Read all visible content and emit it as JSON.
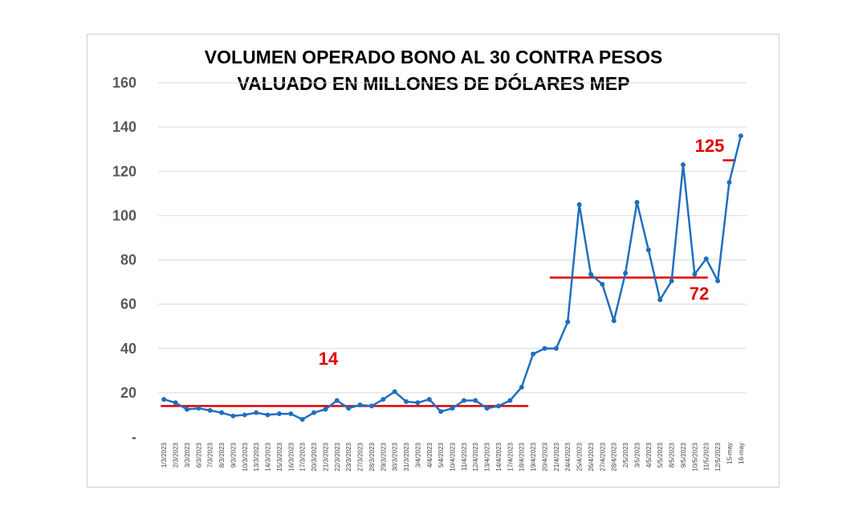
{
  "chart_data": {
    "type": "line",
    "title": "VOLUMEN OPERADO BONO AL 30 CONTRA PESOS",
    "subtitle": "VALUADO EN MILLONES DE DÓLARES MEP",
    "xlabel": "",
    "ylabel": "",
    "ylim": [
      0,
      160
    ],
    "yticks": [
      "-",
      "20",
      "40",
      "60",
      "80",
      "100",
      "120",
      "140",
      "160"
    ],
    "grid": true,
    "x": [
      "1/3/2023",
      "2/3/2023",
      "3/3/2023",
      "6/3/2023",
      "7/3/2023",
      "8/3/2023",
      "9/3/2023",
      "10/3/2023",
      "13/3/2023",
      "14/3/2023",
      "15/3/2023",
      "16/3/2023",
      "17/3/2023",
      "20/3/2023",
      "21/3/2023",
      "22/3/2023",
      "23/3/2023",
      "27/3/2023",
      "28/3/2023",
      "29/3/2023",
      "30/3/2023",
      "31/3/2023",
      "3/4/2023",
      "4/4/2023",
      "5/4/2023",
      "10/4/2023",
      "11/4/2023",
      "12/4/2023",
      "13/4/2023",
      "14/4/2023",
      "17/4/2023",
      "18/4/2023",
      "19/4/2023",
      "20/4/2023",
      "21/4/2023",
      "24/4/2023",
      "25/4/2023",
      "26/4/2023",
      "27/4/2023",
      "28/4/2023",
      "2/5/2023",
      "3/5/2023",
      "4/5/2023",
      "5/5/2023",
      "8/5/2023",
      "9/5/2023",
      "10/5/2023",
      "11/5/2023",
      "12/5/2023",
      "15-may",
      "16-may"
    ],
    "series": [
      {
        "color": "#1f6fbf",
        "values": [
          17,
          15.5,
          12.5,
          13,
          12,
          11,
          9.5,
          10,
          11,
          10,
          10.5,
          10.5,
          8,
          11,
          12.5,
          16.5,
          13,
          14.5,
          14,
          17,
          20.5,
          16,
          15.5,
          17,
          11.5,
          13,
          16.5,
          16.5,
          13,
          14,
          16.5,
          22.5,
          37.5,
          40,
          40,
          52,
          105,
          73.5,
          69,
          52.5,
          74,
          106,
          84.5,
          62,
          70.5,
          123,
          73.5,
          80.5,
          70.5,
          115,
          136
        ]
      }
    ],
    "reference_lines": [
      {
        "label": "14",
        "value": 14,
        "from": "1/3/2023",
        "to": "19/4/2023",
        "color": "#e00000"
      },
      {
        "label": "72",
        "value": 72,
        "from": "21/4/2023",
        "to": "11/5/2023",
        "color": "#e00000"
      },
      {
        "label": "125",
        "value": 125,
        "from": "15-may",
        "to": "16-may",
        "color": "#e00000"
      }
    ]
  }
}
